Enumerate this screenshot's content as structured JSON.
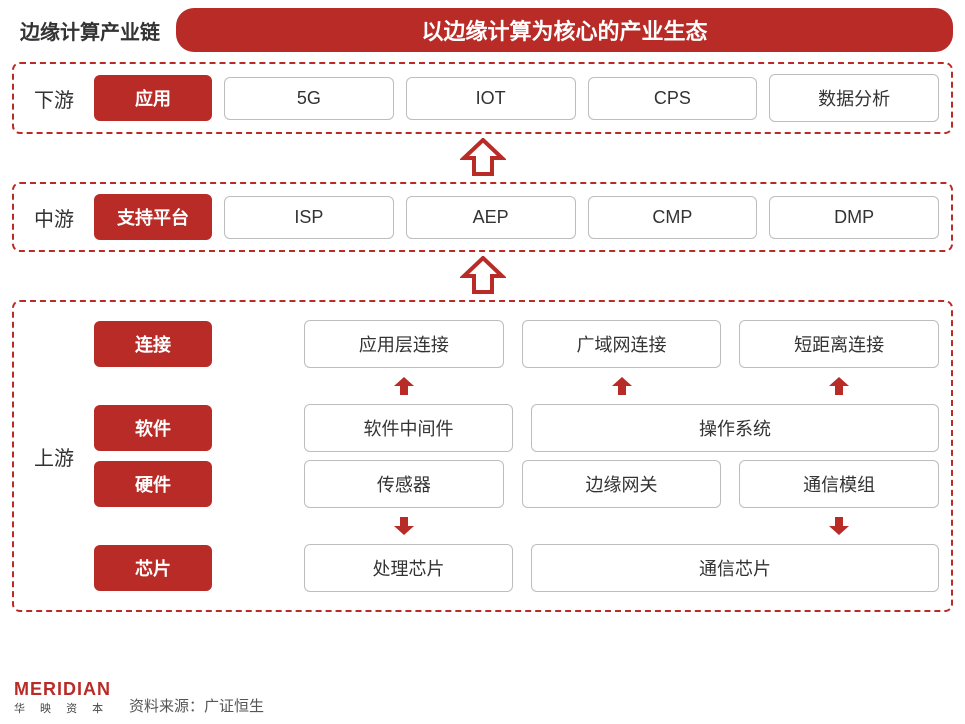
{
  "colors": {
    "accent": "#b92b27",
    "border_gray": "#bdbdbd",
    "text_dark": "#333333",
    "bg": "#ffffff"
  },
  "header": {
    "left": "边缘计算产业链",
    "banner": "以边缘计算为核心的产业生态"
  },
  "downstream": {
    "label": "下游",
    "category": "应用",
    "items": [
      "5G",
      "IOT",
      "CPS",
      "数据分析"
    ]
  },
  "midstream": {
    "label": "中游",
    "category": "支持平台",
    "items": [
      "ISP",
      "AEP",
      "CMP",
      "DMP"
    ]
  },
  "upstream": {
    "label": "上游",
    "rows": [
      {
        "category": "连接",
        "cells": [
          {
            "text": "应用层连接",
            "span": 1
          },
          {
            "text": "广域网连接",
            "span": 1
          },
          {
            "text": "短距离连接",
            "span": 1
          }
        ]
      },
      {
        "category": "软件",
        "cells": [
          {
            "text": "软件中间件",
            "span": 1
          },
          {
            "text": "操作系统",
            "span": 2
          }
        ]
      },
      {
        "category": "硬件",
        "cells": [
          {
            "text": "传感器",
            "span": 1
          },
          {
            "text": "边缘网关",
            "span": 1
          },
          {
            "text": "通信模组",
            "span": 1
          }
        ]
      },
      {
        "category": "芯片",
        "cells": [
          {
            "text": "处理芯片",
            "span": 1
          },
          {
            "text": "通信芯片",
            "span": 2
          }
        ]
      }
    ],
    "mini_arrows_after_row": {
      "0": [
        "up",
        "up",
        "up"
      ],
      "2": [
        "down",
        null,
        "down"
      ]
    }
  },
  "footer": {
    "logo_main": "MERIDIAN",
    "logo_sub": "华 映 资 本",
    "source": "资料来源：广证恒生"
  },
  "style": {
    "title_fontsize": 22,
    "label_fontsize": 20,
    "chip_fontsize": 18,
    "dashed_border_width": 2,
    "chip_radius": 6,
    "banner_radius": 18
  }
}
